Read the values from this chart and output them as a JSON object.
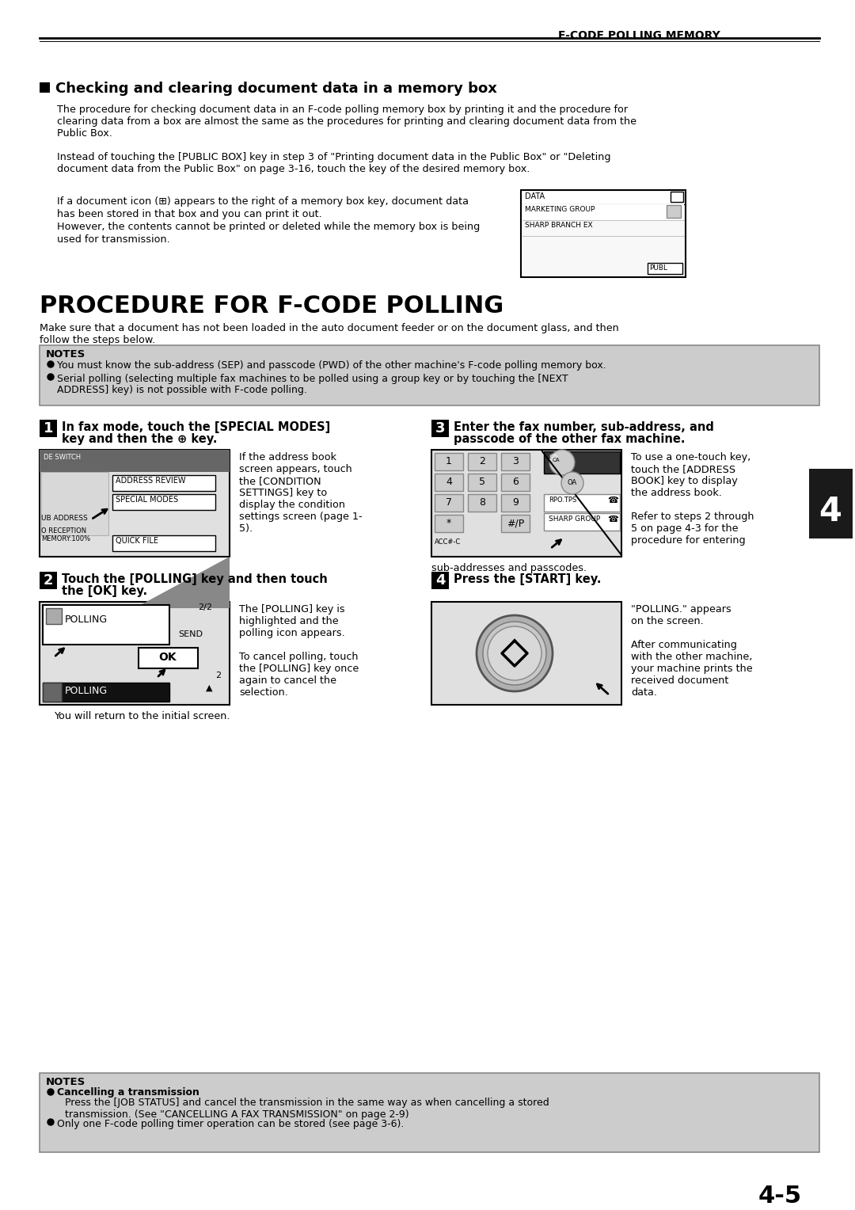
{
  "bg_color": "#ffffff",
  "header_text": "F-CODE POLLING MEMORY",
  "page_number": "4-5",
  "section_marker": "4",
  "checking_title": "Checking and clearing document data in a memory box",
  "checking_body1": "The procedure for checking document data in an F-code polling memory box by printing it and the procedure for\nclearing data from a box are almost the same as the procedures for printing and clearing document data from the\nPublic Box.",
  "checking_body2": "Instead of touching the [PUBLIC BOX] key in step 3 of \"Printing document data in the Public Box\" or \"Deleting\ndocument data from the Public Box\" on page 3-16, touch the key of the desired memory box.",
  "checking_body3a": "If a document icon (⊞) appears to the right of a memory box key, document data",
  "checking_body3b": "has been stored in that box and you can print it out.",
  "checking_body3c": "However, the contents cannot be printed or deleted while the memory box is being",
  "checking_body3d": "used for transmission.",
  "procedure_title": "PROCEDURE FOR F-CODE POLLING",
  "procedure_intro": "Make sure that a document has not been loaded in the auto document feeder or on the document glass, and then\nfollow the steps below.",
  "note1": "You must know the sub-address (SEP) and passcode (PWD) of the other machine's F-code polling memory box.",
  "note2a": "Serial polling (selecting multiple fax machines to be polled using a group key or by touching the [NEXT",
  "note2b": "ADDRESS] key) is not possible with F-code polling.",
  "step1_title_a": "In fax mode, touch the [SPECIAL MODES]",
  "step1_title_b": "key and then the ⊕ key.",
  "step1_body": "If the address book\nscreen appears, touch\nthe [CONDITION\nSETTINGS] key to\ndisplay the condition\nsettings screen (page 1-\n5).",
  "step2_title_a": "Touch the [POLLING] key and then touch",
  "step2_title_b": "the [OK] key.",
  "step2_body": "The [POLLING] key is\nhighlighted and the\npolling icon appears.\n\nTo cancel polling, touch\nthe [POLLING] key once\nagain to cancel the\nselection.",
  "step2_footer": "You will return to the initial screen.",
  "step3_title_a": "Enter the fax number, sub-address, and",
  "step3_title_b": "passcode of the other fax machine.",
  "step3_body": "To use a one-touch key,\ntouch the [ADDRESS\nBOOK] key to display\nthe address book.\n\nRefer to steps 2 through\n5 on page 4-3 for the\nprocedure for entering",
  "step3_footer": "sub-addresses and passcodes.",
  "step4_title": "Press the [START] key.",
  "step4_body": "\"POLLING.\" appears\non the screen.\n\nAfter communicating\nwith the other machine,\nyour machine prints the\nreceived document\ndata.",
  "cancel_bold": "Cancelling a transmission",
  "cancel_body": "Press the [JOB STATUS] and cancel the transmission in the same way as when cancelling a stored\ntransmission. (See \"CANCELLING A FAX TRANSMISSION\" on page 2-9)",
  "note_last": "Only one F-code polling timer operation can be stored (see page 3-6).",
  "ML": 50,
  "MR": 1035,
  "col2": 545
}
